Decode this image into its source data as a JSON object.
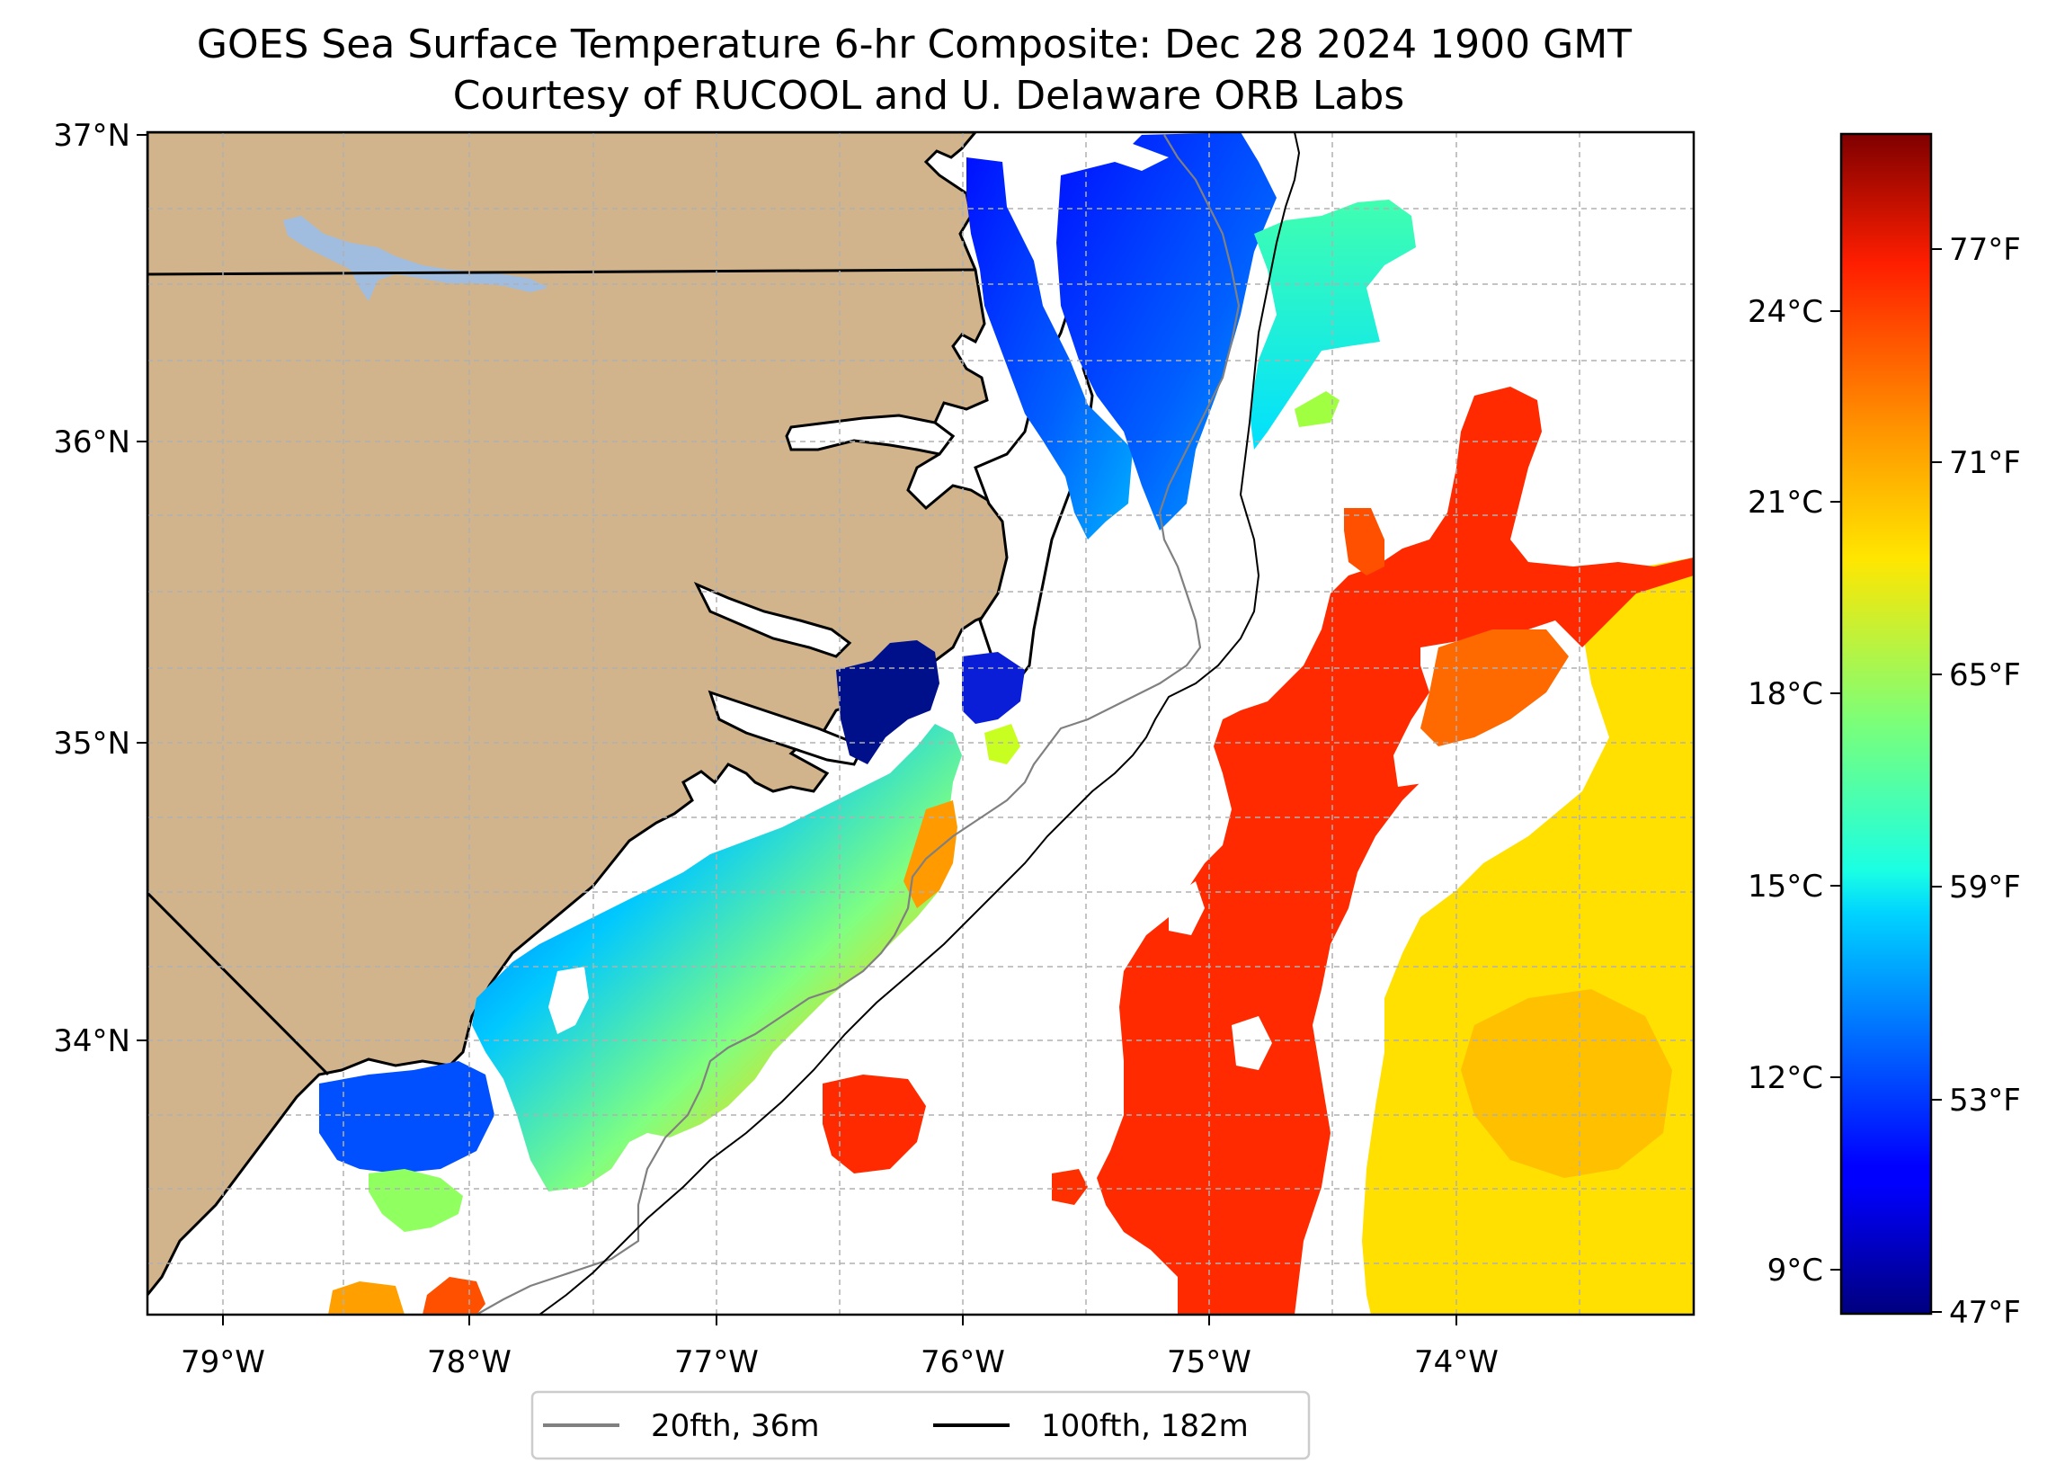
{
  "title": {
    "line1": "GOES Sea Surface Temperature 6-hr Composite: Dec 28 2024 1900 GMT",
    "line2": "Courtesy of RUCOOL and U. Delaware ORB Labs"
  },
  "map": {
    "lat_labels": [
      "37°N",
      "36°N",
      "35°N",
      "34°N"
    ],
    "lon_labels": [
      "79°W",
      "78°W",
      "77°W",
      "76°W",
      "75°W",
      "74°W"
    ],
    "lat_range": [
      33.1,
      37.0
    ],
    "lon_range": [
      -79.3,
      -73.05
    ]
  },
  "colorbar": {
    "celsius_labels": [
      "24°C",
      "21°C",
      "18°C",
      "15°C",
      "12°C",
      "9°C"
    ],
    "fahrenheit_labels": [
      "77°F",
      "71°F",
      "65°F",
      "59°F",
      "53°F",
      "47°F"
    ],
    "range_f": [
      47,
      81
    ],
    "colormap": "jet"
  },
  "legend": {
    "items": [
      {
        "label": "20fth, 36m",
        "color": "#808080"
      },
      {
        "label": "100fth, 182m",
        "color": "#000000"
      }
    ]
  },
  "colors": {
    "land": "#d2b48c",
    "lake": "#a0bde0",
    "grid": "#b0b0b0"
  }
}
